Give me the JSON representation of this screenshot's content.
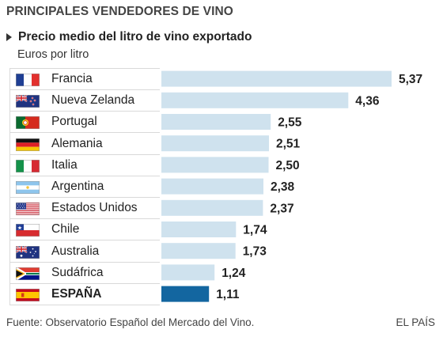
{
  "header": {
    "title": "PRINCIPALES VENDEDORES DE VINO",
    "subtitle": "Precio medio del litro de vino exportado",
    "units": "Euros por litro"
  },
  "footer": {
    "source": "Fuente: Observatorio Español del Mercado del Vino.",
    "brand": "EL PAÍS"
  },
  "colors": {
    "bar": "#cfe2ee",
    "highlight_bar": "#1366a0",
    "text": "#222222"
  },
  "chart_data": {
    "type": "bar",
    "orientation": "horizontal",
    "title": "Precio medio del litro de vino exportado",
    "unit_label": "Euros por litro",
    "categories": [
      "Francia",
      "Nueva Zelanda",
      "Portugal",
      "Alemania",
      "Italia",
      "Argentina",
      "Estados Unidos",
      "Chile",
      "Australia",
      "Sudáfrica",
      "ESPAÑA"
    ],
    "values": [
      5.37,
      4.36,
      2.55,
      2.51,
      2.5,
      2.38,
      2.37,
      1.74,
      1.73,
      1.24,
      1.11
    ],
    "value_labels": [
      "5,37",
      "4,36",
      "2,55",
      "2,51",
      "2,50",
      "2,38",
      "2,37",
      "1,74",
      "1,73",
      "1,24",
      "1,11"
    ],
    "flags": [
      "france-flag-icon",
      "new-zealand-flag-icon",
      "portugal-flag-icon",
      "germany-flag-icon",
      "italy-flag-icon",
      "argentina-flag-icon",
      "usa-flag-icon",
      "chile-flag-icon",
      "australia-flag-icon",
      "south-africa-flag-icon",
      "spain-flag-icon"
    ],
    "highlight": "ESPAÑA",
    "xlim": [
      0,
      5.37
    ],
    "grid": false,
    "legend": "none"
  }
}
